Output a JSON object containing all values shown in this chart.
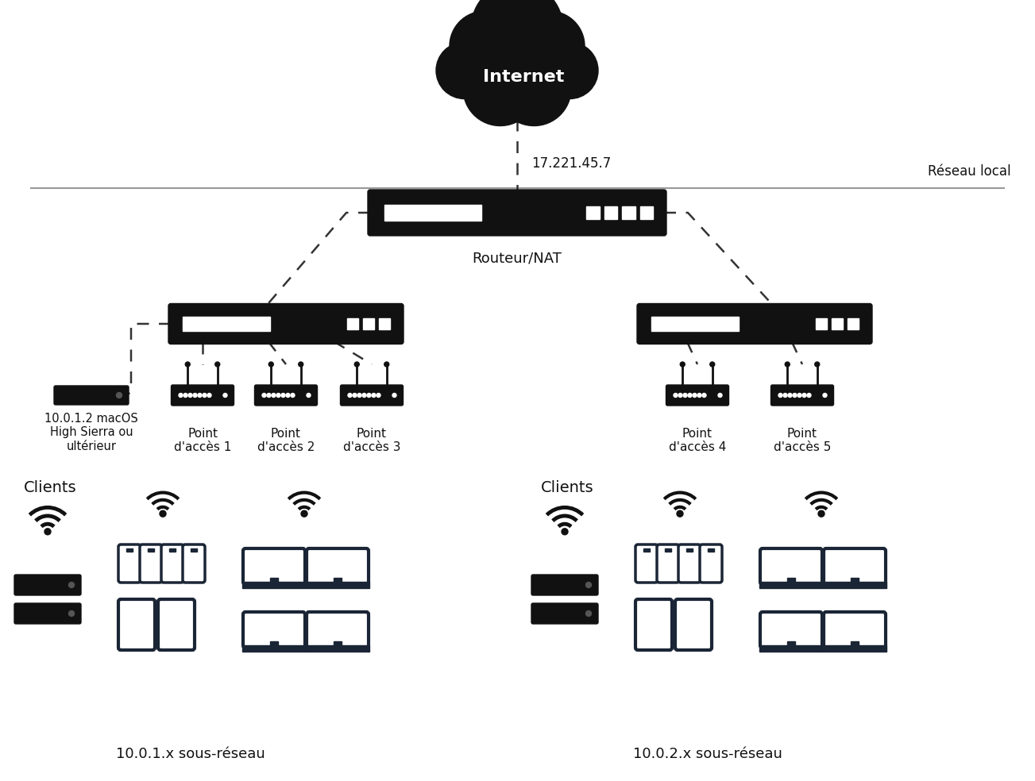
{
  "bg_color": "#ffffff",
  "text_color": "#111111",
  "device_black": "#111111",
  "device_darkblue": "#1a2535",
  "white": "#ffffff",
  "gray_line": "#999999",
  "dash_color": "#333333",
  "internet_label": "Internet",
  "ip_label": "17.221.45.7",
  "router_label": "Routeur/NAT",
  "local_network_label": "Réseau local",
  "macos_label": "10.0.1.2 macOS\nHigh Sierra ou\nultérieur",
  "clients_label": "Clients",
  "subnet1_label": "10.0.1.x sous-réseau",
  "subnet2_label": "10.0.2.x sous-réseau",
  "access_points": [
    "Point\nd'accès 1",
    "Point\nd'accès 2",
    "Point\nd'accès 3",
    "Point\nd'accès 4",
    "Point\nd'accès 5"
  ],
  "figsize": [
    13.03,
    9.84
  ],
  "dpi": 100
}
